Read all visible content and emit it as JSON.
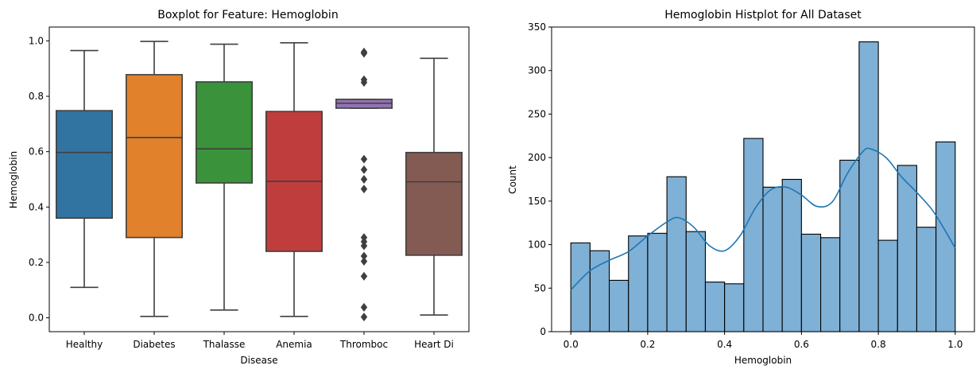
{
  "chart_data": [
    {
      "type": "box",
      "title": "Boxplot for Feature: Hemoglobin",
      "xlabel": "Disease",
      "ylabel": "Hemoglobin",
      "ylim": [
        -0.05,
        1.05
      ],
      "yticks": [
        "0.0",
        "0.2",
        "0.4",
        "0.6",
        "0.8",
        "1.0"
      ],
      "grid": false,
      "categories": [
        "Healthy",
        "Diabetes",
        "Thalasse",
        "Anemia",
        "Thromboc",
        "Heart Di"
      ],
      "boxes": [
        {
          "name": "Healthy",
          "color": "#3274a1",
          "whisker_low": 0.11,
          "q1": 0.36,
          "median": 0.597,
          "q3": 0.748,
          "whisker_high": 0.965,
          "outliers": []
        },
        {
          "name": "Diabetes",
          "color": "#e1812c",
          "whisker_low": 0.005,
          "q1": 0.29,
          "median": 0.651,
          "q3": 0.878,
          "whisker_high": 0.998,
          "outliers": []
        },
        {
          "name": "Thalasse",
          "color": "#3a923a",
          "whisker_low": 0.028,
          "q1": 0.487,
          "median": 0.61,
          "q3": 0.852,
          "whisker_high": 0.988,
          "outliers": []
        },
        {
          "name": "Anemia",
          "color": "#c03d3e",
          "whisker_low": 0.005,
          "q1": 0.24,
          "median": 0.493,
          "q3": 0.745,
          "whisker_high": 0.993,
          "outliers": []
        },
        {
          "name": "Thromboc",
          "color": "#9372b2",
          "whisker_low": 0.757,
          "q1": 0.757,
          "median": 0.775,
          "q3": 0.789,
          "whisker_high": 0.789,
          "outliers": [
            0.003,
            0.038,
            0.15,
            0.204,
            0.223,
            0.26,
            0.275,
            0.29,
            0.465,
            0.5,
            0.535,
            0.573,
            0.85,
            0.86,
            0.955,
            0.96
          ]
        },
        {
          "name": "Heart Di",
          "color": "#845b53",
          "whisker_low": 0.01,
          "q1": 0.226,
          "median": 0.491,
          "q3": 0.597,
          "whisker_high": 0.937,
          "outliers": []
        }
      ]
    },
    {
      "type": "histogram",
      "title": "Hemoglobin Histplot for All Dataset",
      "xlabel": "Hemoglobin",
      "ylabel": "Count",
      "xlim": [
        -0.05,
        1.05
      ],
      "ylim": [
        0,
        350
      ],
      "xticks": [
        "0.0",
        "0.2",
        "0.4",
        "0.6",
        "0.8",
        "1.0"
      ],
      "yticks": [
        "0",
        "50",
        "100",
        "150",
        "200",
        "250",
        "300",
        "350"
      ],
      "grid": false,
      "bin_edges": [
        0.0,
        0.05,
        0.1,
        0.15,
        0.2,
        0.25,
        0.3,
        0.35,
        0.4,
        0.45,
        0.5,
        0.55,
        0.6,
        0.65,
        0.7,
        0.75,
        0.8,
        0.85,
        0.9,
        0.95,
        1.0
      ],
      "counts": [
        102,
        93,
        59,
        110,
        113,
        178,
        115,
        57,
        55,
        222,
        166,
        175,
        112,
        108,
        197,
        333,
        105,
        191,
        120,
        218
      ],
      "bar_color": "#7fb0d6",
      "kde_color": "#1f77b4",
      "kde": {
        "x": [
          0.0,
          0.05,
          0.1,
          0.15,
          0.2,
          0.25,
          0.28,
          0.32,
          0.36,
          0.4,
          0.44,
          0.48,
          0.52,
          0.56,
          0.6,
          0.64,
          0.68,
          0.72,
          0.76,
          0.78,
          0.82,
          0.86,
          0.9,
          0.94,
          0.97,
          1.0
        ],
        "y": [
          48,
          70,
          82,
          92,
          110,
          126,
          131,
          120,
          99,
          93,
          110,
          142,
          163,
          166,
          157,
          144,
          149,
          182,
          207,
          210,
          200,
          178,
          160,
          140,
          119,
          96
        ]
      }
    }
  ]
}
